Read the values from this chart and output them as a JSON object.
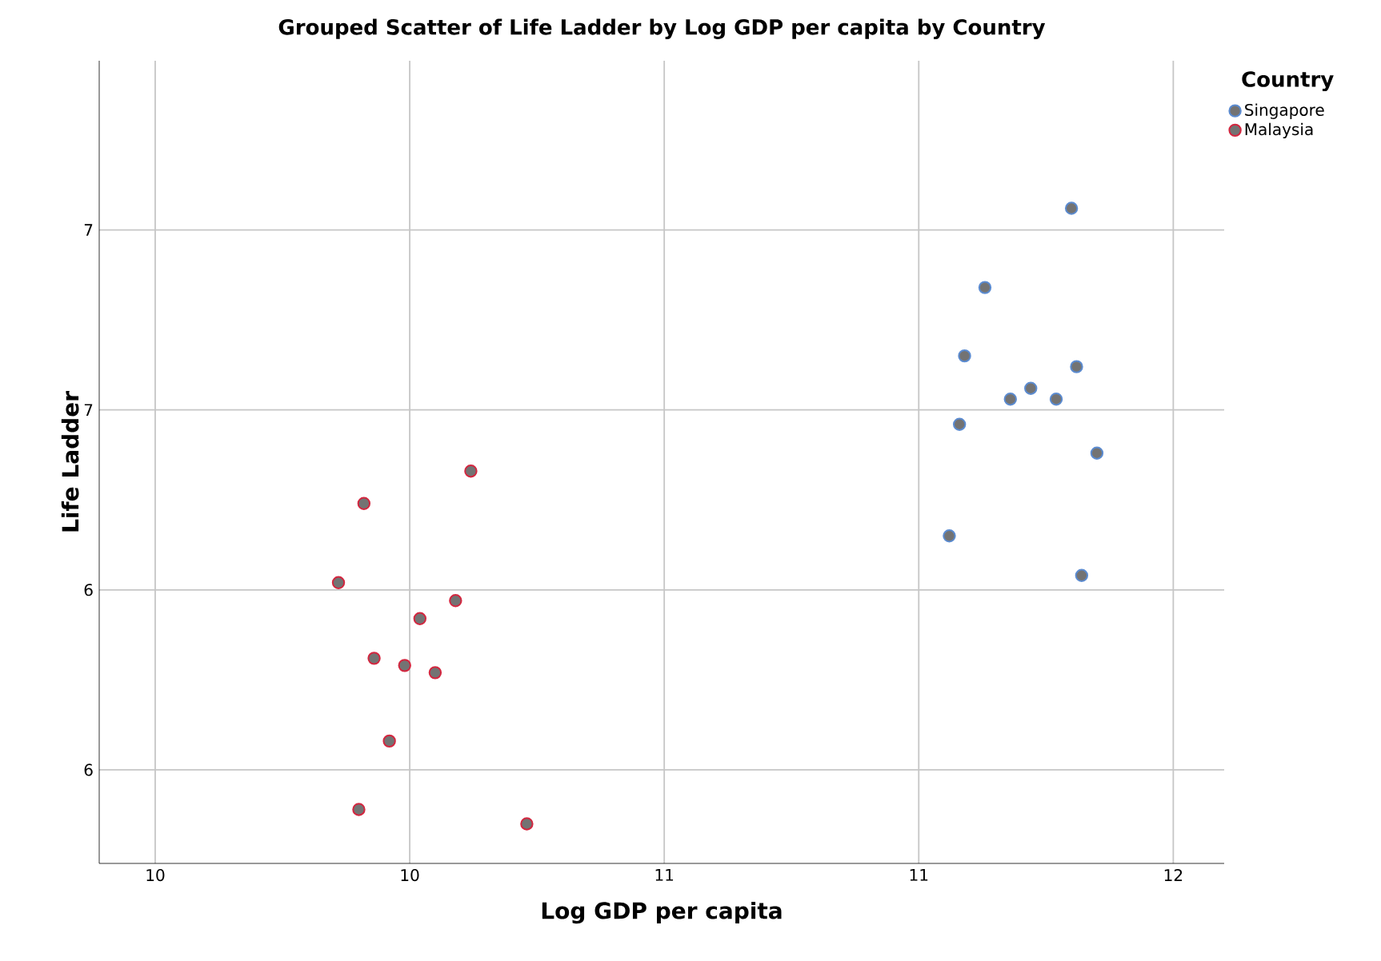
{
  "chart_data": {
    "type": "scatter",
    "title": "Grouped Scatter of Life Ladder by Log GDP per capita by Country",
    "xlabel": "Log GDP per capita",
    "ylabel": "Life Ladder",
    "legend_title": "Country",
    "xlim": [
      9.89,
      12.1
    ],
    "ylim": [
      5.24,
      7.47
    ],
    "xticks": [
      10,
      {
        "value": 10.5,
        "label": "10"
      },
      11,
      {
        "value": 11.5,
        "label": "11"
      },
      12
    ],
    "yticks": [
      {
        "value": 5.5,
        "label": "6"
      },
      6,
      {
        "value": 6.5,
        "label": "7"
      },
      7
    ],
    "grid": true,
    "legend": "top right",
    "marker": "circle",
    "series": [
      {
        "name": "Singapore",
        "color": "#5b8bd0",
        "x": [
          11.8,
          11.63,
          11.59,
          11.81,
          11.72,
          11.68,
          11.77,
          11.58,
          11.85,
          11.56,
          11.82
        ],
        "values": [
          7.06,
          6.84,
          6.65,
          6.62,
          6.56,
          6.53,
          6.53,
          6.46,
          6.38,
          6.15,
          6.04
        ]
      },
      {
        "name": "Malaysia",
        "color": "#d3263f",
        "x": [
          10.62,
          10.41,
          10.36,
          10.59,
          10.52,
          10.43,
          10.49,
          10.55,
          10.46,
          10.4,
          10.73
        ],
        "values": [
          6.33,
          6.24,
          6.02,
          5.97,
          5.92,
          5.81,
          5.79,
          5.77,
          5.58,
          5.39,
          5.35
        ]
      }
    ]
  }
}
